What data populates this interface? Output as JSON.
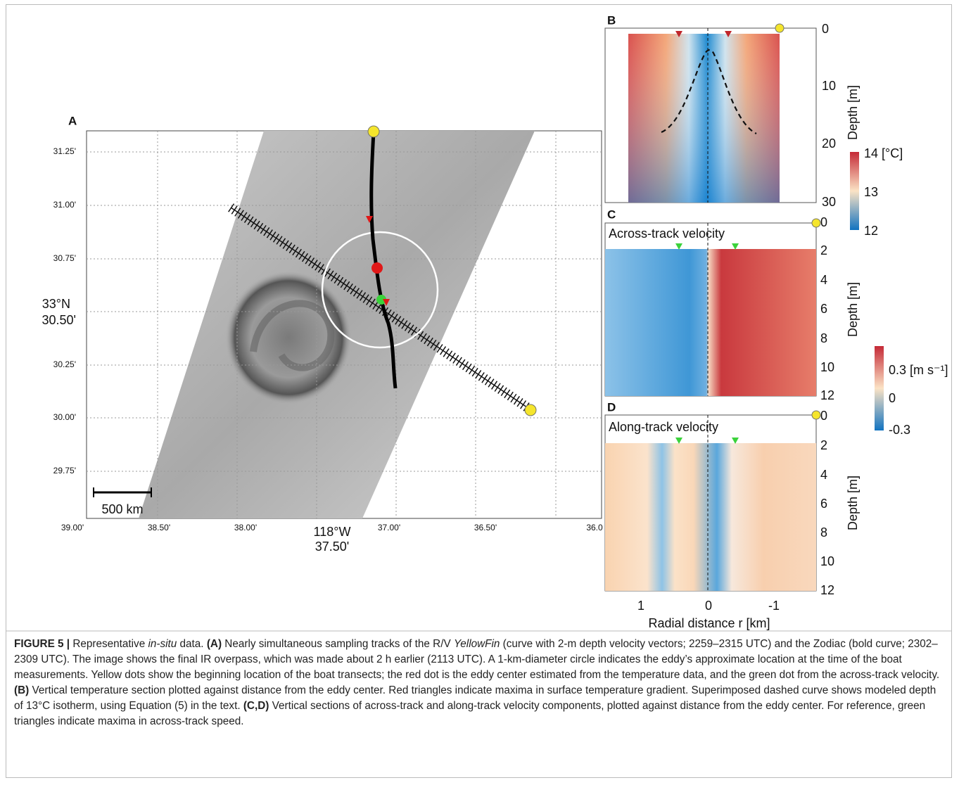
{
  "figure": {
    "panel_a": {
      "label": "A",
      "x_ticks": [
        "39.00'",
        "38.50'",
        "38.00'",
        "37.50'",
        "37.00'",
        "36.50'",
        "36.0"
      ],
      "x_axis_label": "118°W",
      "y_ticks": [
        "31.25'",
        "31.00'",
        "30.75'",
        "30.50'",
        "30.25'",
        "30.00'",
        "29.75'"
      ],
      "y_axis_label": "33°N",
      "scale_bar": "500 km"
    },
    "panel_b": {
      "label": "B",
      "y_ticks": [
        "0",
        "10",
        "20",
        "30"
      ],
      "y_axis_label": "Depth [m]",
      "colorbar_ticks": [
        "14 [°C]",
        "13",
        "12"
      ]
    },
    "panel_c": {
      "label": "C",
      "title": "Across-track velocity",
      "y_ticks": [
        "0",
        "2",
        "4",
        "6",
        "8",
        "10",
        "12"
      ],
      "y_axis_label": "Depth [m]",
      "colorbar_ticks": [
        "0.3 [m s⁻¹]",
        "0",
        "-0.3"
      ]
    },
    "panel_d": {
      "label": "D",
      "title": "Along-track velocity",
      "y_ticks": [
        "0",
        "2",
        "4",
        "6",
        "8",
        "10",
        "12"
      ],
      "y_axis_label": "Depth [m]"
    },
    "x_ticks": [
      "1",
      "0",
      "-1"
    ],
    "x_axis_label": "Radial distance r [km]",
    "caption": [
      "FIGURE 5 |",
      " Representative ",
      "in-situ",
      " data. ",
      "(A)",
      " Nearly simultaneous sampling tracks of the R/V ",
      "YellowFin",
      " (curve with 2-m depth velocity vectors; 2259–2315 UTC) and the Zodiac (bold curve; 2302–2309 UTC). The image shows the final IR overpass, which was made about 2 h earlier (2113 UTC). A 1-km-diameter circle indicates the eddy’s approximate location at the time of the boat measurements. Yellow dots show the beginning location of the boat transects; the red dot is the eddy center estimated from the temperature data, and the green dot from the across-track velocity. ",
      "(B)",
      " Vertical temperature section plotted against distance from the eddy center. Red triangles indicate maxima in surface temperature gradient. Superimposed dashed curve shows modeled depth of 13°C isotherm, using Equation (5) in the text. ",
      "(C,D)",
      " Vertical sections of across-track and along-track velocity components, plotted against distance from the eddy center. For reference, green triangles indicate maxima in across-track speed."
    ]
  }
}
